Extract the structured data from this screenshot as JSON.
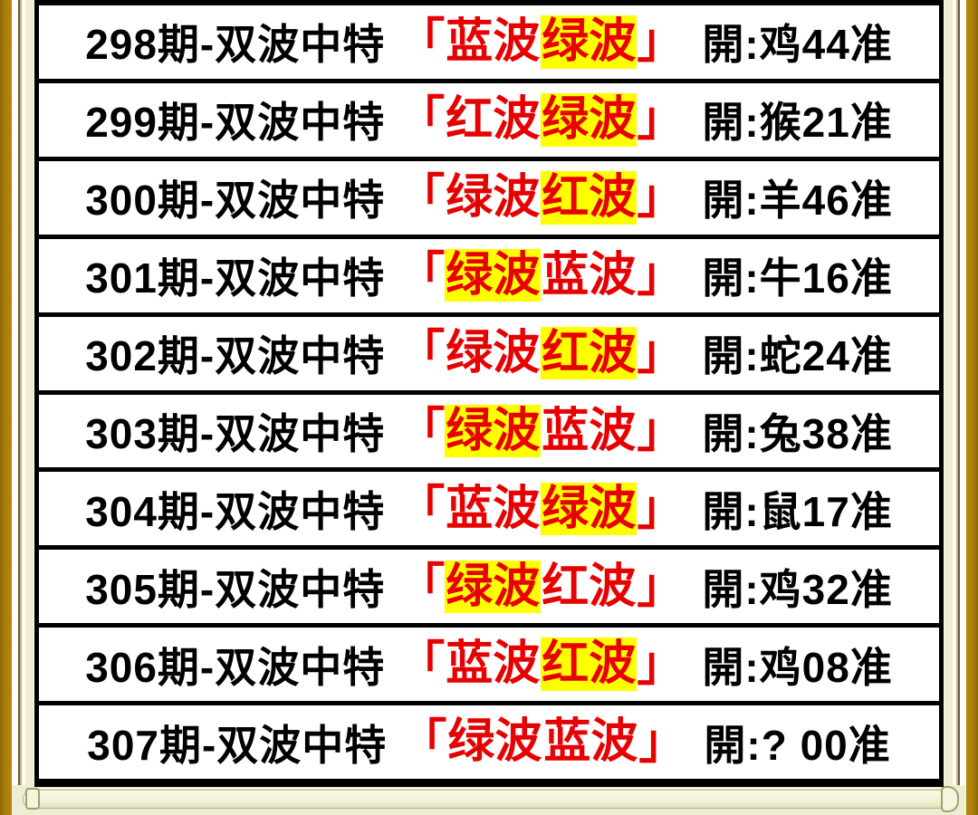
{
  "theme": {
    "frame_gold": "#a87d0a",
    "strip_background": "#edefd4",
    "row_border": "#000000",
    "red_text": "#e60000",
    "highlight_yellow": "#ffff00",
    "black_text": "#000000"
  },
  "table": {
    "rows": [
      {
        "left": "298期-双波中特",
        "open": "「",
        "close": "」",
        "words": [
          {
            "text": "蓝波",
            "highlight": false
          },
          {
            "text": "绿波",
            "highlight": true
          }
        ],
        "result": "開:鸡44准"
      },
      {
        "left": "299期-双波中特",
        "open": "「",
        "close": "」",
        "words": [
          {
            "text": "红波",
            "highlight": false
          },
          {
            "text": "绿波",
            "highlight": true
          }
        ],
        "result": "開:猴21准"
      },
      {
        "left": "300期-双波中特",
        "open": "「",
        "close": "」",
        "words": [
          {
            "text": "绿波",
            "highlight": false
          },
          {
            "text": "红波",
            "highlight": true
          }
        ],
        "result": "開:羊46准"
      },
      {
        "left": "301期-双波中特",
        "open": "「",
        "close": "」",
        "words": [
          {
            "text": "绿波",
            "highlight": true
          },
          {
            "text": "蓝波",
            "highlight": false
          }
        ],
        "result": "開:牛16准"
      },
      {
        "left": "302期-双波中特",
        "open": "「",
        "close": "」",
        "words": [
          {
            "text": "绿波",
            "highlight": false
          },
          {
            "text": "红波",
            "highlight": true
          }
        ],
        "result": "開:蛇24准"
      },
      {
        "left": "303期-双波中特",
        "open": "「",
        "close": "」",
        "words": [
          {
            "text": "绿波",
            "highlight": true
          },
          {
            "text": "蓝波",
            "highlight": false
          }
        ],
        "result": "開:兔38准"
      },
      {
        "left": "304期-双波中特",
        "open": "「",
        "close": "」",
        "words": [
          {
            "text": "蓝波",
            "highlight": false
          },
          {
            "text": "绿波",
            "highlight": true
          }
        ],
        "result": "開:鼠17准"
      },
      {
        "left": "305期-双波中特",
        "open": "「",
        "close": "」",
        "words": [
          {
            "text": "绿波",
            "highlight": true
          },
          {
            "text": "红波",
            "highlight": false
          }
        ],
        "result": "開:鸡32准"
      },
      {
        "left": "306期-双波中特",
        "open": "「",
        "close": "」",
        "words": [
          {
            "text": "蓝波",
            "highlight": false
          },
          {
            "text": "红波",
            "highlight": true
          }
        ],
        "result": "開:鸡08准"
      },
      {
        "left": "307期-双波中特",
        "open": "「",
        "close": "」",
        "words": [
          {
            "text": "绿波",
            "highlight": false
          },
          {
            "text": "蓝波",
            "highlight": false
          }
        ],
        "result": "開:? 00准"
      }
    ]
  }
}
